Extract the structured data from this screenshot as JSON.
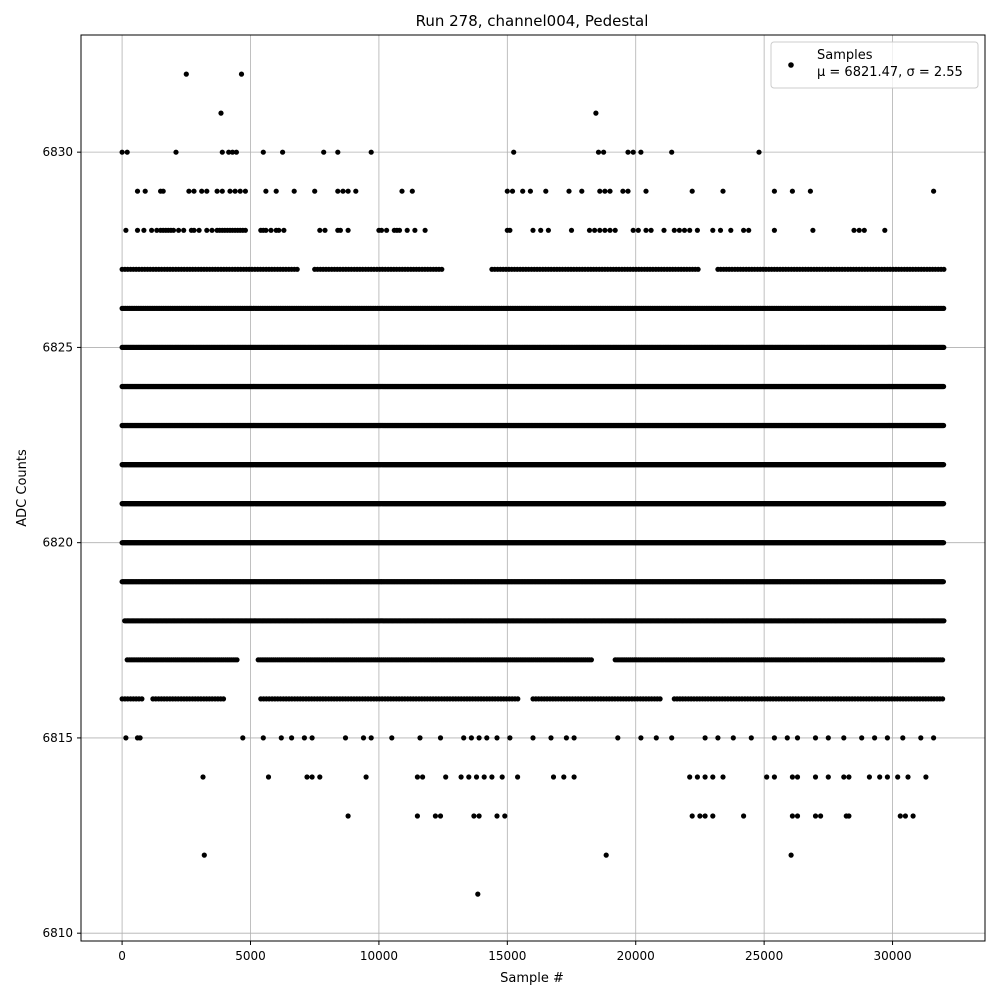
{
  "chart_data": {
    "type": "scatter",
    "title": "Run 278, channel004, Pedestal",
    "xlabel": "Sample #",
    "ylabel": "ADC Counts",
    "xlim": [
      -1600,
      33600
    ],
    "ylim": [
      6809.8,
      6833.0
    ],
    "x_ticks": [
      0,
      5000,
      10000,
      15000,
      20000,
      25000,
      30000
    ],
    "y_ticks": [
      6810,
      6815,
      6820,
      6825,
      6830
    ],
    "grid": true,
    "legend_position": "top-right",
    "legend": {
      "label": "Samples",
      "stats": "μ = 6821.47, σ = 2.55"
    },
    "marker_color": "#000000",
    "levels": [
      {
        "y": 6832,
        "x": [
          2500,
          4650
        ]
      },
      {
        "y": 6831,
        "x": [
          3850,
          18450
        ]
      },
      {
        "y": 6830,
        "x": [
          0,
          200,
          2100,
          3900,
          4150,
          4300,
          4450,
          5500,
          6250,
          7850,
          8400,
          9700,
          15250,
          18550,
          18750,
          19700,
          19900,
          20200,
          21400,
          24800
        ]
      },
      {
        "y": 6829,
        "x": [
          600,
          900,
          1500,
          1600,
          2600,
          2800,
          3100,
          3300,
          3700,
          3900,
          4200,
          4400,
          4600,
          4800,
          5600,
          6000,
          6700,
          7500,
          8400,
          8600,
          8800,
          9100,
          10900,
          11300,
          15000,
          15200,
          15600,
          15900,
          16500,
          17400,
          17900,
          18600,
          18800,
          19000,
          19500,
          19700,
          20400,
          22200,
          23400,
          25400,
          26100,
          26800,
          31600
        ]
      },
      {
        "y": 6828,
        "x": [
          150,
          600,
          850,
          1150,
          1350,
          1500,
          1600,
          1700,
          1800,
          1900,
          2000,
          2200,
          2400,
          2700,
          2800,
          3000,
          3300,
          3500,
          3700,
          3800,
          3900,
          4000,
          4100,
          4200,
          4300,
          4400,
          4500,
          4600,
          4700,
          4800,
          5400,
          5500,
          5600,
          5800,
          6000,
          6100,
          6300,
          7700,
          7900,
          8400,
          8500,
          8800,
          10000,
          10100,
          10300,
          10600,
          10700,
          10800,
          11100,
          11400,
          11800,
          15000,
          15100,
          16000,
          16300,
          16600,
          17500,
          18200,
          18400,
          18600,
          18800,
          19000,
          19200,
          19900,
          20100,
          20400,
          20600,
          21100,
          21500,
          21700,
          21900,
          22100,
          22400,
          23000,
          23300,
          23700,
          24200,
          24400,
          25400,
          26900,
          28500,
          28700,
          28900,
          29700
        ]
      },
      {
        "y": 6815,
        "x": [
          150,
          600,
          700,
          4700,
          5500,
          6200,
          6600,
          7100,
          7400,
          8700,
          9400,
          9700,
          10500,
          11600,
          12400,
          13300,
          13600,
          13900,
          14200,
          14600,
          15100,
          16000,
          16700,
          17300,
          17600,
          19300,
          20200,
          20800,
          21400,
          22700,
          23200,
          23800,
          24500,
          25400,
          25900,
          26300,
          27000,
          27500,
          28100,
          28800,
          29300,
          29800,
          30400,
          31100,
          31600
        ]
      },
      {
        "y": 6814,
        "x": [
          3150,
          5700,
          7200,
          7400,
          7700,
          9500,
          11500,
          11700,
          12600,
          13200,
          13500,
          13800,
          14100,
          14400,
          14800,
          15400,
          16800,
          17200,
          17600,
          22100,
          22400,
          22700,
          23000,
          23400,
          25100,
          25400,
          26100,
          26300,
          27000,
          27500,
          28100,
          28300,
          29100,
          29500,
          29800,
          30200,
          30600,
          31300
        ]
      },
      {
        "y": 6813,
        "x": [
          8800,
          11500,
          12200,
          12400,
          13700,
          13900,
          14600,
          14900,
          22200,
          22500,
          22700,
          23000,
          24200,
          26100,
          26300,
          27000,
          27200,
          28200,
          28300,
          30300,
          30500,
          30800
        ]
      },
      {
        "y": 6812,
        "x": [
          3200,
          18850,
          26050
        ]
      },
      {
        "y": 6811,
        "x": [
          13850
        ]
      }
    ],
    "dense_levels": [
      {
        "y": 6827,
        "ranges": [
          [
            0,
            6900
          ],
          [
            7500,
            12500
          ],
          [
            14400,
            22500
          ],
          [
            23200,
            32000
          ]
        ],
        "spacing": 110
      },
      {
        "y": 6826,
        "ranges": [
          [
            0,
            32000
          ]
        ],
        "spacing": 70
      },
      {
        "y": 6825,
        "ranges": [
          [
            0,
            32000
          ]
        ],
        "spacing": 45
      },
      {
        "y": 6824,
        "ranges": [
          [
            0,
            32000
          ]
        ],
        "spacing": 22
      },
      {
        "y": 6823,
        "ranges": [
          [
            0,
            32000
          ]
        ],
        "spacing": 22
      },
      {
        "y": 6822,
        "ranges": [
          [
            0,
            32000
          ]
        ],
        "spacing": 22
      },
      {
        "y": 6821,
        "ranges": [
          [
            0,
            32000
          ]
        ],
        "spacing": 22
      },
      {
        "y": 6820,
        "ranges": [
          [
            0,
            32000
          ]
        ],
        "spacing": 22
      },
      {
        "y": 6819,
        "ranges": [
          [
            0,
            32000
          ]
        ],
        "spacing": 30
      },
      {
        "y": 6818,
        "ranges": [
          [
            100,
            32000
          ]
        ],
        "spacing": 50
      },
      {
        "y": 6817,
        "ranges": [
          [
            200,
            4500
          ],
          [
            5300,
            18300
          ],
          [
            19200,
            32000
          ]
        ],
        "spacing": 75
      },
      {
        "y": 6816,
        "ranges": [
          [
            0,
            800
          ],
          [
            1200,
            4000
          ],
          [
            5400,
            15500
          ],
          [
            16000,
            21000
          ],
          [
            21500,
            32000
          ]
        ],
        "spacing": 110
      }
    ]
  }
}
